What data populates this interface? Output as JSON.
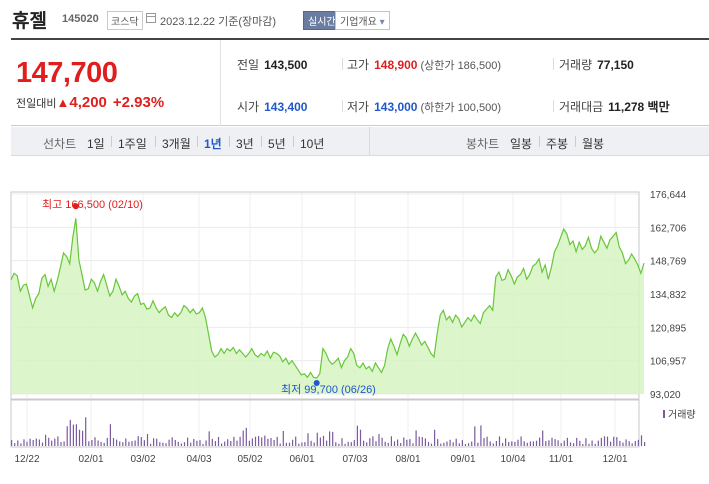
{
  "header": {
    "name": "휴젤",
    "code": "145020",
    "market": "코스닥",
    "date_label": "2023.12.22 기준(장마감)",
    "realtime_label": "실시간",
    "company_label": "기업개요",
    "company_chevron": "▾"
  },
  "quote": {
    "price": "147,700",
    "change_label": "전일대비",
    "change_symbol": "▲",
    "change_amount": "4,200",
    "change_pct": "+2.93%",
    "prev_label": "전일",
    "prev": "143,500",
    "high_label": "고가",
    "high": "148,900",
    "upper_limit": "(상한가 186,500)",
    "volume_label": "거래량",
    "volume": "77,150",
    "open_label": "시가",
    "open": "143,400",
    "low_label": "저가",
    "low": "143,000",
    "lower_limit": "(하한가 100,500)",
    "amount_label": "거래대금",
    "amount": "11,278 백만"
  },
  "tabs": {
    "line_label": "선차트",
    "periods": [
      "1일",
      "1주일",
      "3개월",
      "1년",
      "3년",
      "5년",
      "10년"
    ],
    "active_period": "1년",
    "candle_label": "봉차트",
    "candles": [
      "일봉",
      "주봉",
      "월봉"
    ]
  },
  "colors": {
    "up": "#e01e1e",
    "down": "#2158c9",
    "line": "#68c63a",
    "area": "#d6f3c2",
    "volume": "#7b5a9e"
  },
  "chart_data": {
    "type": "area",
    "y_ticks": [
      "176,644",
      "162,706",
      "148,769",
      "134,832",
      "120,895",
      "106,957",
      "93,020"
    ],
    "ylim": [
      93020,
      176644
    ],
    "x_ticks": [
      "12/22",
      "02/01",
      "03/02",
      "04/03",
      "05/02",
      "06/01",
      "07/03",
      "08/01",
      "09/01",
      "10/04",
      "11/01",
      "12/01"
    ],
    "high_annotation": "최고 166,500 (02/10)",
    "low_annotation": "최저 99,700 (06/26)",
    "high_value": 166500,
    "low_value": 99700,
    "volume_label": "거래량",
    "grid": true,
    "values": [
      140800,
      143500,
      142500,
      136000,
      138500,
      139000,
      134000,
      129000,
      133000,
      135000,
      141500,
      143000,
      138000,
      141000,
      136000,
      140500,
      146000,
      152000,
      150500,
      147500,
      158500,
      166500,
      149000,
      143000,
      136500,
      137000,
      141000,
      139500,
      136000,
      140000,
      143000,
      138500,
      134000,
      136000,
      141000,
      138000,
      134500,
      136000,
      133000,
      131500,
      134000,
      135000,
      130500,
      131000,
      128500,
      129000,
      132000,
      129000,
      127000,
      128500,
      129500,
      126000,
      125000,
      127000,
      125500,
      127000,
      130000,
      129000,
      127000,
      128500,
      126500,
      127000,
      129000,
      125000,
      118000,
      111000,
      108500,
      109500,
      112000,
      110000,
      112000,
      111000,
      112500,
      110000,
      111500,
      110000,
      108500,
      110000,
      112000,
      109500,
      108500,
      110000,
      109000,
      111000,
      108000,
      110500,
      110000,
      109000,
      106500,
      108000,
      105500,
      107000,
      105000,
      103000,
      101000,
      101500,
      100000,
      102000,
      100000,
      99700,
      101500,
      112000,
      110000,
      107000,
      105500,
      106500,
      108000,
      104000,
      107000,
      108500,
      112000,
      110000,
      105000,
      104000,
      106000,
      103500,
      104500,
      102500,
      106000,
      104000,
      102000,
      105000,
      112000,
      116000,
      113000,
      109500,
      114000,
      118000,
      116500,
      113000,
      116000,
      118500,
      116000,
      113500,
      115000,
      112500,
      110000,
      108500,
      118000,
      126000,
      128000,
      124000,
      125500,
      123000,
      126000,
      124500,
      121000,
      123000,
      125000,
      123500,
      126000,
      124000,
      122500,
      127000,
      128500,
      130000,
      128000,
      142000,
      144000,
      140500,
      141000,
      145000,
      142500,
      139000,
      142000,
      143000,
      145500,
      141000,
      143000,
      146500,
      147500,
      149500,
      144000,
      147000,
      141000,
      146000,
      152500,
      155000,
      158500,
      162000,
      160000,
      155500,
      157000,
      152500,
      156500,
      153500,
      155000,
      158500,
      154000,
      152000,
      153500,
      159000,
      156500,
      154000,
      157500,
      159000,
      160500,
      154500,
      152000,
      147500,
      149000,
      151500,
      149500,
      147000,
      143500,
      147700
    ]
  }
}
